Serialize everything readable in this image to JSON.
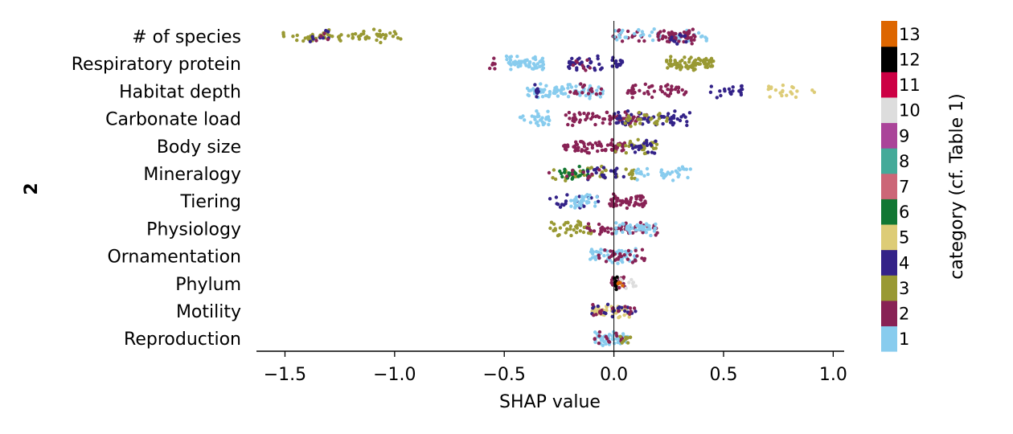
{
  "panel_label": "2",
  "chart_data": {
    "type": "scatter",
    "subtype": "shap-beeswarm",
    "xlabel": "SHAP value",
    "ylabel": "",
    "xlim": [
      -1.63,
      1.05
    ],
    "xticks": [
      -1.5,
      -1.0,
      -0.5,
      0.0,
      0.5,
      1.0
    ],
    "xtick_labels": [
      "−1.5",
      "−1.0",
      "−0.5",
      "0.0",
      "0.5",
      "1.0"
    ],
    "grid": false,
    "features": [
      "# of species",
      "Respiratory protein",
      "Habitat depth",
      "Carbonate load",
      "Body size",
      "Mineralogy",
      "Tiering",
      "Physiology",
      "Ornamentation",
      "Phylum",
      "Motility",
      "Reproduction"
    ],
    "colorbar": {
      "label": "category (cf. Table 1)",
      "categories": [
        "1",
        "2",
        "3",
        "4",
        "5",
        "6",
        "7",
        "8",
        "9",
        "10",
        "11",
        "12",
        "13"
      ],
      "colors": [
        "#88ccee",
        "#882255",
        "#999933",
        "#332288",
        "#ddcc77",
        "#117733",
        "#cc6677",
        "#44aa99",
        "#aa4499",
        "#dddddd",
        "#cc0044",
        "#000000",
        "#dd6600"
      ]
    },
    "clusters": [
      {
        "feature": 0,
        "category": 3,
        "x_range": [
          -1.51,
          -0.97
        ],
        "n": 70
      },
      {
        "feature": 0,
        "category": 4,
        "x_range": [
          -1.42,
          -1.3
        ],
        "n": 8
      },
      {
        "feature": 0,
        "category": 2,
        "x_range": [
          -1.38,
          -1.3
        ],
        "n": 4
      },
      {
        "feature": 0,
        "category": 2,
        "x_range": [
          -0.01,
          0.14
        ],
        "n": 18
      },
      {
        "feature": 0,
        "category": 1,
        "x_range": [
          0.0,
          0.43
        ],
        "n": 40
      },
      {
        "feature": 0,
        "category": 2,
        "x_range": [
          0.2,
          0.37
        ],
        "n": 55
      },
      {
        "feature": 0,
        "category": 4,
        "x_range": [
          0.25,
          0.33
        ],
        "n": 10
      },
      {
        "feature": 1,
        "category": 2,
        "x_range": [
          -0.57,
          -0.54
        ],
        "n": 6
      },
      {
        "feature": 1,
        "category": 1,
        "x_range": [
          -0.49,
          -0.31
        ],
        "n": 60
      },
      {
        "feature": 1,
        "category": 4,
        "x_range": [
          -0.21,
          -0.05
        ],
        "n": 30
      },
      {
        "feature": 1,
        "category": 2,
        "x_range": [
          -0.2,
          -0.1
        ],
        "n": 8
      },
      {
        "feature": 1,
        "category": 4,
        "x_range": [
          -0.01,
          0.04
        ],
        "n": 15
      },
      {
        "feature": 1,
        "category": 3,
        "x_range": [
          0.24,
          0.46
        ],
        "n": 80
      },
      {
        "feature": 2,
        "category": 1,
        "x_range": [
          -0.4,
          -0.05
        ],
        "n": 80
      },
      {
        "feature": 2,
        "category": 4,
        "x_range": [
          -0.36,
          -0.34
        ],
        "n": 10
      },
      {
        "feature": 2,
        "category": 2,
        "x_range": [
          -0.2,
          -0.05
        ],
        "n": 15
      },
      {
        "feature": 2,
        "category": 2,
        "x_range": [
          0.05,
          0.33
        ],
        "n": 50
      },
      {
        "feature": 2,
        "category": 4,
        "x_range": [
          0.42,
          0.59
        ],
        "n": 20
      },
      {
        "feature": 2,
        "category": 5,
        "x_range": [
          0.7,
          0.93
        ],
        "n": 20
      },
      {
        "feature": 3,
        "category": 1,
        "x_range": [
          -0.43,
          -0.28
        ],
        "n": 30
      },
      {
        "feature": 3,
        "category": 2,
        "x_range": [
          -0.22,
          0.15
        ],
        "n": 70
      },
      {
        "feature": 3,
        "category": 4,
        "x_range": [
          0.0,
          0.35
        ],
        "n": 60
      },
      {
        "feature": 3,
        "category": 3,
        "x_range": [
          0.05,
          0.25
        ],
        "n": 25
      },
      {
        "feature": 4,
        "category": 2,
        "x_range": [
          -0.25,
          0.05
        ],
        "n": 70
      },
      {
        "feature": 4,
        "category": 3,
        "x_range": [
          0.0,
          0.2
        ],
        "n": 30
      },
      {
        "feature": 4,
        "category": 4,
        "x_range": [
          0.08,
          0.2
        ],
        "n": 20
      },
      {
        "feature": 5,
        "category": 3,
        "x_range": [
          -0.33,
          0.1
        ],
        "n": 40
      },
      {
        "feature": 5,
        "category": 6,
        "x_range": [
          -0.25,
          -0.1
        ],
        "n": 25
      },
      {
        "feature": 5,
        "category": 4,
        "x_range": [
          -0.15,
          0.05
        ],
        "n": 20
      },
      {
        "feature": 5,
        "category": 2,
        "x_range": [
          -0.3,
          -0.05
        ],
        "n": 10
      },
      {
        "feature": 5,
        "category": 1,
        "x_range": [
          0.1,
          0.35
        ],
        "n": 35
      },
      {
        "feature": 6,
        "category": 4,
        "x_range": [
          -0.3,
          -0.05
        ],
        "n": 20
      },
      {
        "feature": 6,
        "category": 1,
        "x_range": [
          -0.2,
          -0.07
        ],
        "n": 30
      },
      {
        "feature": 6,
        "category": 2,
        "x_range": [
          -0.02,
          0.15
        ],
        "n": 60
      },
      {
        "feature": 7,
        "category": 3,
        "x_range": [
          -0.3,
          -0.1
        ],
        "n": 40
      },
      {
        "feature": 7,
        "category": 2,
        "x_range": [
          -0.13,
          0.2
        ],
        "n": 50
      },
      {
        "feature": 7,
        "category": 1,
        "x_range": [
          0.0,
          0.2
        ],
        "n": 40
      },
      {
        "feature": 8,
        "category": 1,
        "x_range": [
          -0.11,
          0.1
        ],
        "n": 50
      },
      {
        "feature": 8,
        "category": 2,
        "x_range": [
          -0.07,
          0.15
        ],
        "n": 30
      },
      {
        "feature": 9,
        "category": 2,
        "x_range": [
          -0.03,
          0.05
        ],
        "n": 15
      },
      {
        "feature": 9,
        "category": 12,
        "x_range": [
          0.0,
          0.03
        ],
        "n": 8
      },
      {
        "feature": 9,
        "category": 10,
        "x_range": [
          0.03,
          0.1
        ],
        "n": 10
      },
      {
        "feature": 9,
        "category": 13,
        "x_range": [
          0.01,
          0.05
        ],
        "n": 4
      },
      {
        "feature": 10,
        "category": 5,
        "x_range": [
          -0.1,
          0.07
        ],
        "n": 40
      },
      {
        "feature": 10,
        "category": 4,
        "x_range": [
          -0.1,
          0.13
        ],
        "n": 20
      },
      {
        "feature": 10,
        "category": 2,
        "x_range": [
          -0.1,
          0.1
        ],
        "n": 15
      },
      {
        "feature": 11,
        "category": 1,
        "x_range": [
          -0.09,
          0.07
        ],
        "n": 50
      },
      {
        "feature": 11,
        "category": 2,
        "x_range": [
          -0.1,
          0.04
        ],
        "n": 15
      },
      {
        "feature": 11,
        "category": 3,
        "x_range": [
          0.0,
          0.08
        ],
        "n": 10
      }
    ]
  }
}
